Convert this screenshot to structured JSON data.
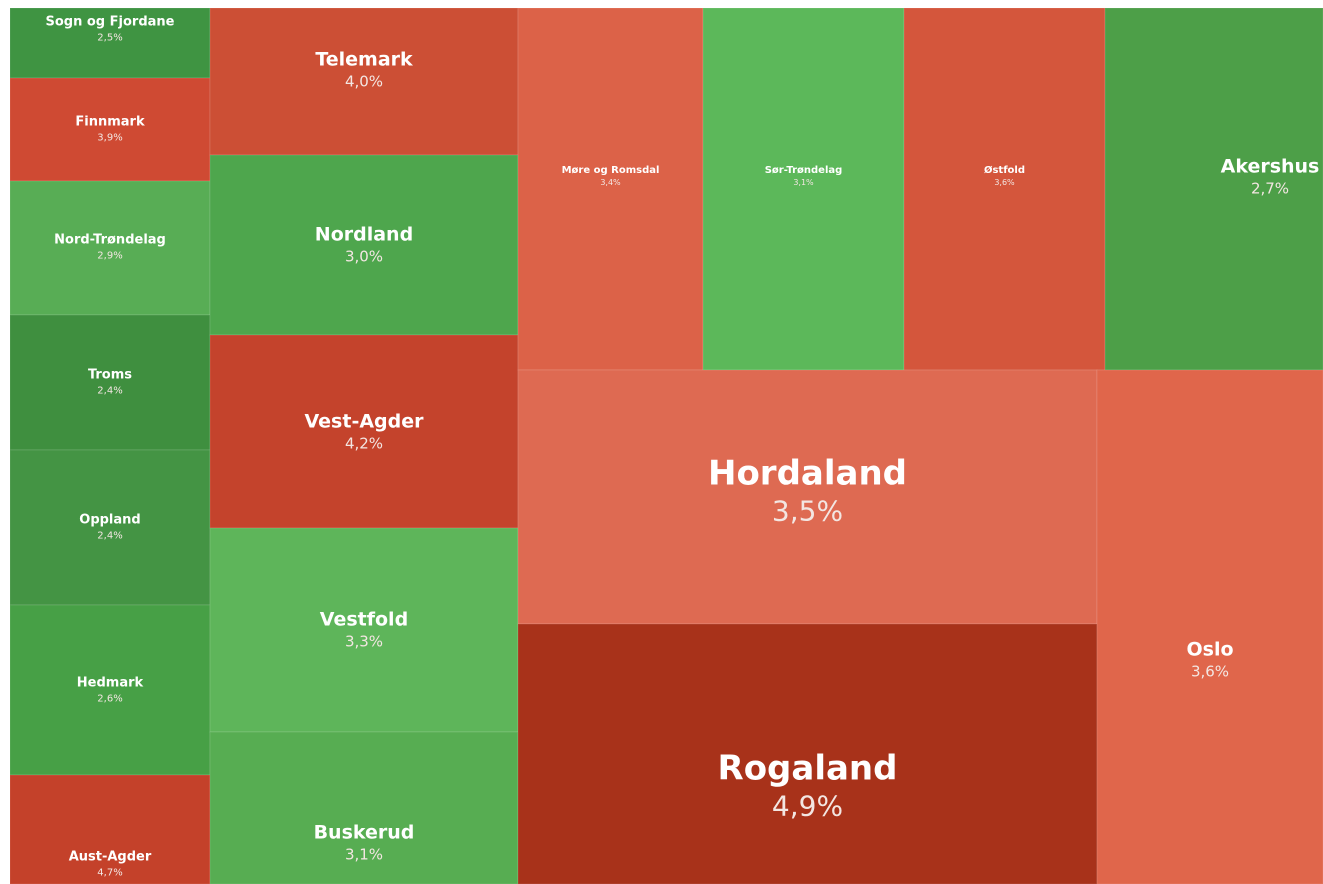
{
  "chart_data": {
    "type": "treemap",
    "categories": [
      "Sogn og Fjordane",
      "Finnmark",
      "Nord-Trøndelag",
      "Troms",
      "Oppland",
      "Hedmark",
      "Aust-Agder",
      "Telemark",
      "Nordland",
      "Vest-Agder",
      "Vestfold",
      "Buskerud",
      "Møre og Romsdal",
      "Sør-Trøndelag",
      "Østfold",
      "Akershus",
      "Hordaland",
      "Rogaland",
      "Oslo"
    ],
    "values": [
      2.5,
      3.9,
      2.9,
      2.4,
      2.4,
      2.6,
      4.7,
      4.0,
      3.0,
      4.2,
      3.3,
      3.1,
      3.4,
      3.1,
      3.6,
      2.7,
      3.5,
      4.9,
      3.6
    ],
    "value_labels": [
      "2,5%",
      "3,9%",
      "2,9%",
      "2,4%",
      "2,4%",
      "2,6%",
      "4,7%",
      "4,0%",
      "3,0%",
      "4,2%",
      "3,3%",
      "3,1%",
      "3,4%",
      "3,1%",
      "3,6%",
      "2,7%",
      "3,5%",
      "4,9%",
      "3,6%"
    ],
    "colors": [
      "#3f9442",
      "#cf4a33",
      "#58ad55",
      "#3f8f3f",
      "#449444",
      "#47a046",
      "#c4412a",
      "#cc4f35",
      "#4ea64d",
      "#c4432c",
      "#5eb55a",
      "#57ad52",
      "#dc6248",
      "#5cb85a",
      "#d4563c",
      "#4d9f48",
      "#de6a52",
      "#a8321a",
      "#e0664b"
    ]
  }
}
